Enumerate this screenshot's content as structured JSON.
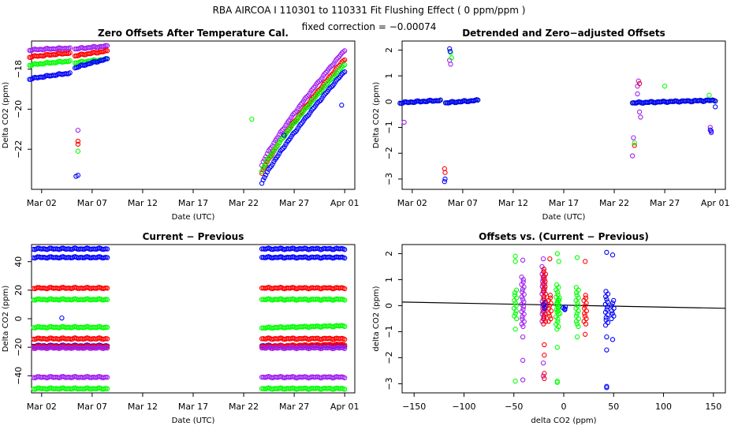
{
  "header": {
    "title": "RBA   AIRCOA I   110301 to 110331   Fit Flushing Effect ( 0 ppm/ppm )",
    "subtitle": "fixed correction = −0.00074"
  },
  "colors": {
    "blue": "#0000ff",
    "red": "#ff0000",
    "green": "#00ff00",
    "purple": "#a020f0",
    "line": "#000000"
  },
  "chart_data": [
    {
      "id": "p1",
      "type": "scatter",
      "title": "Zero Offsets After Temperature Cal.",
      "xlabel": "Date (UTC)",
      "ylabel": "Delta CO2 (ppm)",
      "xlim": [
        0,
        32
      ],
      "ylim": [
        -24.0,
        -16.6
      ],
      "xticks": [
        1,
        6,
        11,
        16,
        21,
        26,
        31
      ],
      "xticklabels": [
        "Mar 02",
        "Mar 07",
        "Mar 12",
        "Mar 17",
        "Mar 22",
        "Mar 27",
        "Apr 01"
      ],
      "yticks": [
        -22,
        -20,
        -18
      ],
      "yticklabels": [
        "−22",
        "−20",
        "−18"
      ],
      "series": [
        {
          "name": "purple",
          "color": "purple",
          "segments": [
            [
              -0.2,
              3.8,
              -17.05,
              -16.95
            ],
            [
              4.3,
              7.5,
              -17.0,
              -16.85
            ],
            [
              22.8,
              31.0,
              -22.8,
              -17.05
            ]
          ],
          "points": [
            [
              4.6,
              -21.05
            ]
          ]
        },
        {
          "name": "red",
          "color": "red",
          "segments": [
            [
              -0.2,
              3.8,
              -17.4,
              -17.2
            ],
            [
              4.3,
              7.5,
              -17.35,
              -17.1
            ],
            [
              22.8,
              31.0,
              -23.2,
              -17.5
            ]
          ],
          "points": [
            [
              4.6,
              -21.6
            ],
            [
              4.6,
              -21.75
            ]
          ]
        },
        {
          "name": "green",
          "color": "green",
          "segments": [
            [
              -0.2,
              3.8,
              -17.8,
              -17.6
            ],
            [
              4.3,
              7.5,
              -17.7,
              -17.5
            ],
            [
              22.8,
              31.0,
              -23.1,
              -17.75
            ]
          ],
          "points": [
            [
              4.6,
              -22.1
            ],
            [
              21.8,
              -20.5
            ]
          ]
        },
        {
          "name": "blue",
          "color": "blue",
          "segments": [
            [
              -0.2,
              3.8,
              -18.5,
              -18.2
            ],
            [
              4.3,
              7.5,
              -17.95,
              -17.5
            ],
            [
              22.8,
              31.0,
              -23.7,
              -18.1
            ]
          ],
          "points": [
            [
              4.6,
              -23.3
            ],
            [
              4.4,
              -23.35
            ],
            [
              25.0,
              -21.3
            ],
            [
              30.7,
              -19.8
            ]
          ]
        }
      ]
    },
    {
      "id": "p2",
      "type": "scatter",
      "title": "Detrended and Zero−adjusted Offsets",
      "xlabel": "Date (UTC)",
      "ylabel": "Delta CO2 (ppm)",
      "xlim": [
        0,
        32
      ],
      "ylim": [
        -3.4,
        2.35
      ],
      "xticks": [
        1,
        6,
        11,
        16,
        21,
        26,
        31
      ],
      "xticklabels": [
        "Mar 02",
        "Mar 07",
        "Mar 12",
        "Mar 17",
        "Mar 22",
        "Mar 27",
        "Apr 01"
      ],
      "yticks": [
        -3,
        -2,
        -1,
        0,
        1,
        2
      ],
      "yticklabels": [
        "−3",
        "−2",
        "−1",
        "0",
        "1",
        "2"
      ],
      "series": [
        {
          "name": "purple",
          "color": "purple",
          "segments": [
            [
              -0.2,
              3.8,
              -0.05,
              0.05
            ],
            [
              4.3,
              7.5,
              -0.05,
              0.05
            ],
            [
              22.8,
              31.0,
              -0.05,
              0.05
            ]
          ],
          "points": [
            [
              0.2,
              -0.8
            ],
            [
              4.7,
              1.6
            ],
            [
              4.8,
              1.45
            ],
            [
              22.8,
              -2.1
            ],
            [
              22.9,
              -1.4
            ],
            [
              23.3,
              0.6
            ],
            [
              23.4,
              0.8
            ],
            [
              23.3,
              0.3
            ],
            [
              23.5,
              -0.4
            ],
            [
              23.6,
              -0.6
            ],
            [
              30.5,
              -1.0
            ],
            [
              30.6,
              -1.2
            ]
          ]
        },
        {
          "name": "red",
          "color": "red",
          "segments": [
            [
              -0.2,
              3.8,
              -0.05,
              0.05
            ],
            [
              4.3,
              7.5,
              -0.05,
              0.05
            ],
            [
              22.8,
              31.0,
              -0.05,
              0.05
            ]
          ],
          "points": [
            [
              4.2,
              -2.6
            ],
            [
              4.25,
              -2.75
            ],
            [
              23.0,
              -1.7
            ],
            [
              23.5,
              0.7
            ]
          ]
        },
        {
          "name": "green",
          "color": "green",
          "segments": [
            [
              -0.2,
              3.8,
              -0.05,
              0.05
            ],
            [
              4.3,
              7.5,
              -0.05,
              0.05
            ],
            [
              22.8,
              31.0,
              -0.05,
              0.05
            ]
          ],
          "points": [
            [
              4.8,
              1.9
            ],
            [
              4.9,
              1.7
            ],
            [
              23.0,
              -1.6
            ],
            [
              26.0,
              0.6
            ],
            [
              30.4,
              0.25
            ]
          ]
        },
        {
          "name": "blue",
          "color": "blue",
          "segments": [
            [
              -0.2,
              3.8,
              -0.05,
              0.05
            ],
            [
              4.3,
              7.5,
              -0.05,
              0.05
            ],
            [
              22.8,
              31.0,
              -0.05,
              0.05
            ]
          ],
          "points": [
            [
              4.2,
              -3.1
            ],
            [
              4.25,
              -3.0
            ],
            [
              4.7,
              2.05
            ],
            [
              4.75,
              1.95
            ],
            [
              30.5,
              -1.1
            ],
            [
              30.6,
              -1.15
            ],
            [
              31.0,
              -0.2
            ]
          ]
        }
      ]
    },
    {
      "id": "p3",
      "type": "scatter",
      "title": "Current − Previous",
      "xlabel": "Date (UTC)",
      "ylabel": "Delta CO2 (ppm)",
      "xlim": [
        0,
        32
      ],
      "ylim": [
        -52,
        52
      ],
      "xticks": [
        1,
        6,
        11,
        16,
        21,
        26,
        31
      ],
      "xticklabels": [
        "Mar 02",
        "Mar 07",
        "Mar 12",
        "Mar 17",
        "Mar 22",
        "Mar 27",
        "Apr 01"
      ],
      "yticks": [
        -40,
        -20,
        0,
        20,
        40
      ],
      "yticklabels": [
        "−40",
        "−20",
        "0",
        "20",
        "40"
      ],
      "series": [
        {
          "name": "blue",
          "color": "blue",
          "segments": [
            [
              0.2,
              7.5,
              49,
              49
            ],
            [
              0.2,
              7.5,
              43,
              43
            ],
            [
              22.8,
              31.0,
              49,
              49
            ],
            [
              22.8,
              31.0,
              43,
              43
            ],
            [
              0.2,
              7.5,
              -19,
              -19
            ],
            [
              22.8,
              31.0,
              -19,
              -19
            ]
          ],
          "points": [
            [
              3.0,
              0.5
            ]
          ]
        },
        {
          "name": "red",
          "color": "red",
          "segments": [
            [
              0.2,
              7.5,
              21.5,
              21.5
            ],
            [
              0.2,
              7.5,
              -14,
              -14
            ],
            [
              0.2,
              7.5,
              -19.5,
              -19.5
            ],
            [
              22.8,
              31.0,
              21.5,
              21.5
            ],
            [
              22.8,
              31.0,
              -14,
              -14
            ],
            [
              22.8,
              31.0,
              -19.5,
              -18.0
            ]
          ],
          "points": []
        },
        {
          "name": "green",
          "color": "green",
          "segments": [
            [
              0.2,
              7.5,
              13.5,
              13.5
            ],
            [
              0.2,
              7.5,
              -6,
              -6
            ],
            [
              0.2,
              7.5,
              -49,
              -49
            ],
            [
              22.8,
              31.0,
              13.5,
              13.5
            ],
            [
              22.8,
              31.0,
              -6.5,
              -5
            ],
            [
              22.8,
              31.0,
              -49,
              -49
            ]
          ],
          "points": []
        },
        {
          "name": "purple",
          "color": "purple",
          "segments": [
            [
              0.2,
              7.5,
              -20.5,
              -20.5
            ],
            [
              0.2,
              7.5,
              -41,
              -41
            ],
            [
              22.8,
              31.0,
              -20.5,
              -20.5
            ],
            [
              22.8,
              31.0,
              -41,
              -41
            ]
          ],
          "points": []
        }
      ]
    },
    {
      "id": "p4",
      "type": "scatter",
      "title": "Offsets vs. (Current − Previous)",
      "xlabel": "delta CO2 (ppm)",
      "ylabel": "delta CO2 (ppm)",
      "xlim": [
        -162,
        162
      ],
      "ylim": [
        -3.35,
        2.35
      ],
      "xticks": [
        -150,
        -100,
        -50,
        0,
        50,
        100,
        150
      ],
      "xticklabels": [
        "−150",
        "−100",
        "−50",
        "0",
        "50",
        "100",
        "150"
      ],
      "yticks": [
        -3,
        -2,
        -1,
        0,
        1,
        2
      ],
      "yticklabels": [
        "−3",
        "−2",
        "−1",
        "0",
        "1",
        "2"
      ],
      "fit_line": {
        "slope": -0.00074,
        "intercept": 0.02
      },
      "columns": [
        {
          "color": "green",
          "x": -48.5,
          "ymin": -0.5,
          "ymax": 0.6,
          "extra": [
            1.9,
            1.7,
            -0.9,
            -2.9
          ]
        },
        {
          "color": "purple",
          "x": -41,
          "ymin": -0.8,
          "ymax": 1.1,
          "extra": [
            1.75,
            -1.2,
            -2.1,
            -2.85
          ]
        },
        {
          "color": "purple",
          "x": -20.5,
          "ymin": -0.6,
          "ymax": 1.5,
          "extra": [
            1.8,
            -2.2,
            -2.7
          ]
        },
        {
          "color": "red",
          "x": -19.5,
          "ymin": -0.7,
          "ymax": 1.4,
          "extra": [
            -1.5,
            -1.9,
            -2.6,
            -2.8
          ]
        },
        {
          "color": "blue",
          "x": -19,
          "ymin": -0.1,
          "ymax": 0.1,
          "extra": []
        },
        {
          "color": "red",
          "x": -14,
          "ymin": -0.6,
          "ymax": 0.4,
          "extra": [
            1.8
          ]
        },
        {
          "color": "green",
          "x": -6.5,
          "ymin": -0.9,
          "ymax": 0.8,
          "extra": [
            2.0,
            -1.6,
            -2.9,
            -2.95
          ]
        },
        {
          "color": "green",
          "x": -5,
          "ymin": -0.3,
          "ymax": 0.3,
          "extra": [
            1.7
          ]
        },
        {
          "color": "blue",
          "x": 0.5,
          "ymin": -0.15,
          "ymax": -0.05,
          "extra": []
        },
        {
          "color": "green",
          "x": 13.5,
          "ymin": -0.8,
          "ymax": 0.7,
          "extra": [
            1.85,
            -1.2
          ]
        },
        {
          "color": "red",
          "x": 21.5,
          "ymin": -0.7,
          "ymax": 0.4,
          "extra": [
            1.7,
            -1.1
          ]
        },
        {
          "color": "blue",
          "x": 43,
          "ymin": -0.75,
          "ymax": 0.55,
          "extra": [
            2.05,
            -1.2,
            -1.7,
            -3.1,
            -3.15
          ]
        },
        {
          "color": "blue",
          "x": 49,
          "ymin": -0.5,
          "ymax": 0.2,
          "extra": [
            1.95,
            -1.3
          ]
        }
      ]
    }
  ]
}
